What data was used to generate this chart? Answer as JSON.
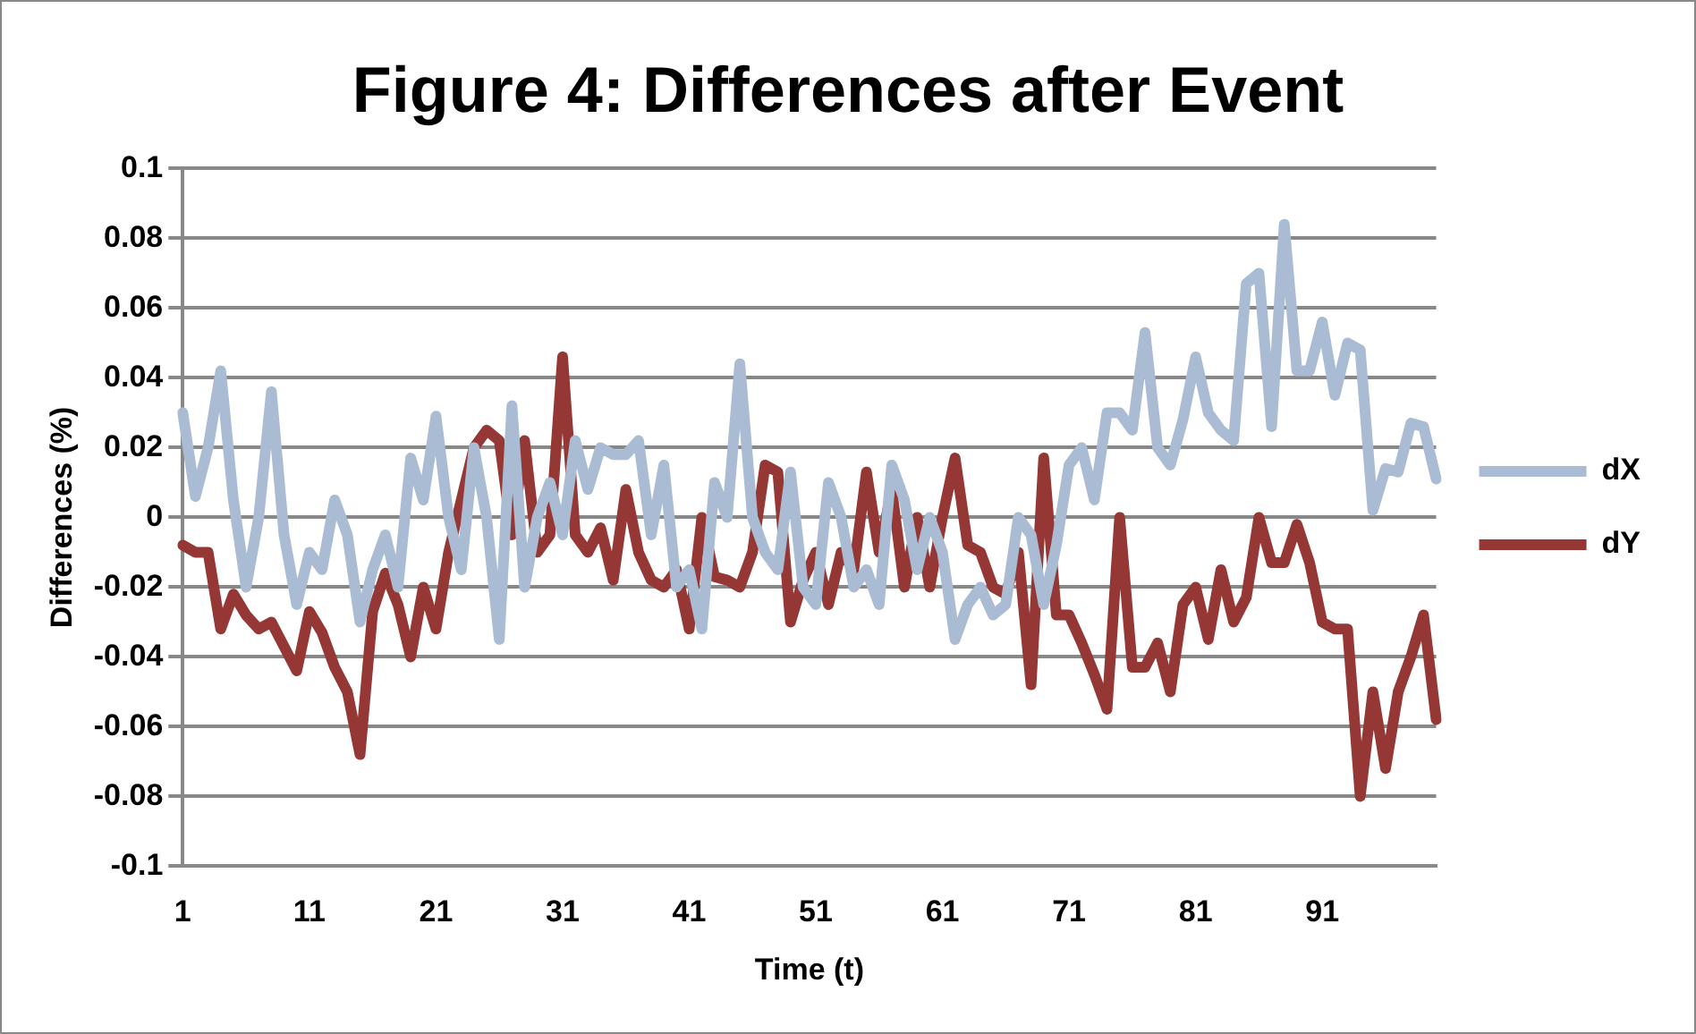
{
  "chart_data": {
    "type": "line",
    "title": "Figure 4: Differences after Event",
    "xlabel": "Time (t)",
    "ylabel": "Differences (%)",
    "categories": [
      "1",
      null,
      null,
      null,
      null,
      null,
      null,
      null,
      null,
      null,
      "11",
      null,
      null,
      null,
      null,
      null,
      null,
      null,
      null,
      null,
      "21",
      null,
      null,
      null,
      null,
      null,
      null,
      null,
      null,
      null,
      "31",
      null,
      null,
      null,
      null,
      null,
      null,
      null,
      null,
      null,
      "41",
      null,
      null,
      null,
      null,
      null,
      null,
      null,
      null,
      null,
      "51",
      null,
      null,
      null,
      null,
      null,
      null,
      null,
      null,
      null,
      "61",
      null,
      null,
      null,
      null,
      null,
      null,
      null,
      null,
      null,
      "71",
      null,
      null,
      null,
      null,
      null,
      null,
      null,
      null,
      null,
      "81",
      null,
      null,
      null,
      null,
      null,
      null,
      null,
      null,
      null,
      "91",
      null,
      null,
      null,
      null,
      null,
      null,
      null,
      null,
      null
    ],
    "series": [
      {
        "name": "dX",
        "color": "#a9bcd3",
        "values": [
          0.03,
          0.006,
          0.02,
          0.042,
          0.005,
          -0.02,
          0.0,
          0.036,
          -0.005,
          -0.025,
          -0.01,
          -0.015,
          0.005,
          -0.005,
          -0.03,
          -0.015,
          -0.005,
          -0.02,
          0.017,
          0.005,
          0.029,
          0.0,
          -0.015,
          0.02,
          0.0,
          -0.035,
          0.032,
          -0.02,
          0.0,
          0.01,
          -0.005,
          0.022,
          0.008,
          0.02,
          0.018,
          0.018,
          0.022,
          -0.005,
          0.015,
          -0.02,
          -0.015,
          -0.032,
          0.01,
          0.0,
          0.044,
          0.0,
          -0.01,
          -0.015,
          0.013,
          -0.02,
          -0.025,
          0.01,
          0.0,
          -0.02,
          -0.015,
          -0.025,
          0.015,
          0.005,
          -0.015,
          0.0,
          -0.01,
          -0.035,
          -0.025,
          -0.02,
          -0.028,
          -0.025,
          0.0,
          -0.005,
          -0.025,
          -0.008,
          0.015,
          0.02,
          0.005,
          0.03,
          0.03,
          0.025,
          0.053,
          0.02,
          0.015,
          0.028,
          0.046,
          0.03,
          0.025,
          0.022,
          0.067,
          0.07,
          0.026,
          0.084,
          0.042,
          0.042,
          0.056,
          0.035,
          0.05,
          0.048,
          0.002,
          0.014,
          0.013,
          0.027,
          0.026,
          0.011
        ]
      },
      {
        "name": "dY",
        "color": "#953735",
        "values": [
          -0.008,
          -0.01,
          -0.01,
          -0.032,
          -0.022,
          -0.028,
          -0.032,
          -0.03,
          -0.037,
          -0.044,
          -0.027,
          -0.033,
          -0.043,
          -0.05,
          -0.068,
          -0.027,
          -0.016,
          -0.025,
          -0.04,
          -0.02,
          -0.032,
          -0.01,
          0.005,
          0.02,
          0.025,
          0.022,
          -0.005,
          0.022,
          -0.01,
          -0.005,
          0.046,
          -0.005,
          -0.01,
          -0.003,
          -0.018,
          0.008,
          -0.01,
          -0.018,
          -0.02,
          -0.015,
          -0.032,
          0.0,
          -0.017,
          -0.018,
          -0.02,
          -0.01,
          0.015,
          0.013,
          -0.03,
          -0.018,
          -0.01,
          -0.025,
          -0.01,
          -0.015,
          0.013,
          -0.01,
          0.008,
          -0.02,
          0.0,
          -0.02,
          0.0,
          0.017,
          -0.008,
          -0.01,
          -0.02,
          -0.022,
          -0.01,
          -0.048,
          0.017,
          -0.028,
          -0.028,
          -0.036,
          -0.045,
          -0.055,
          0.0,
          -0.043,
          -0.043,
          -0.036,
          -0.05,
          -0.025,
          -0.02,
          -0.035,
          -0.015,
          -0.03,
          -0.023,
          0.0,
          -0.013,
          -0.013,
          -0.002,
          -0.013,
          -0.03,
          -0.032,
          -0.032,
          -0.08,
          -0.05,
          -0.072,
          -0.05,
          -0.04,
          -0.028,
          -0.058
        ]
      }
    ],
    "ylim": [
      -0.1,
      0.1
    ],
    "yticks": [
      -0.1,
      -0.08,
      -0.06,
      -0.04,
      -0.02,
      0,
      0.02,
      0.04,
      0.06,
      0.08,
      0.1
    ],
    "grid": "y",
    "legend": "right",
    "marker": "none",
    "line_style": "solid"
  }
}
